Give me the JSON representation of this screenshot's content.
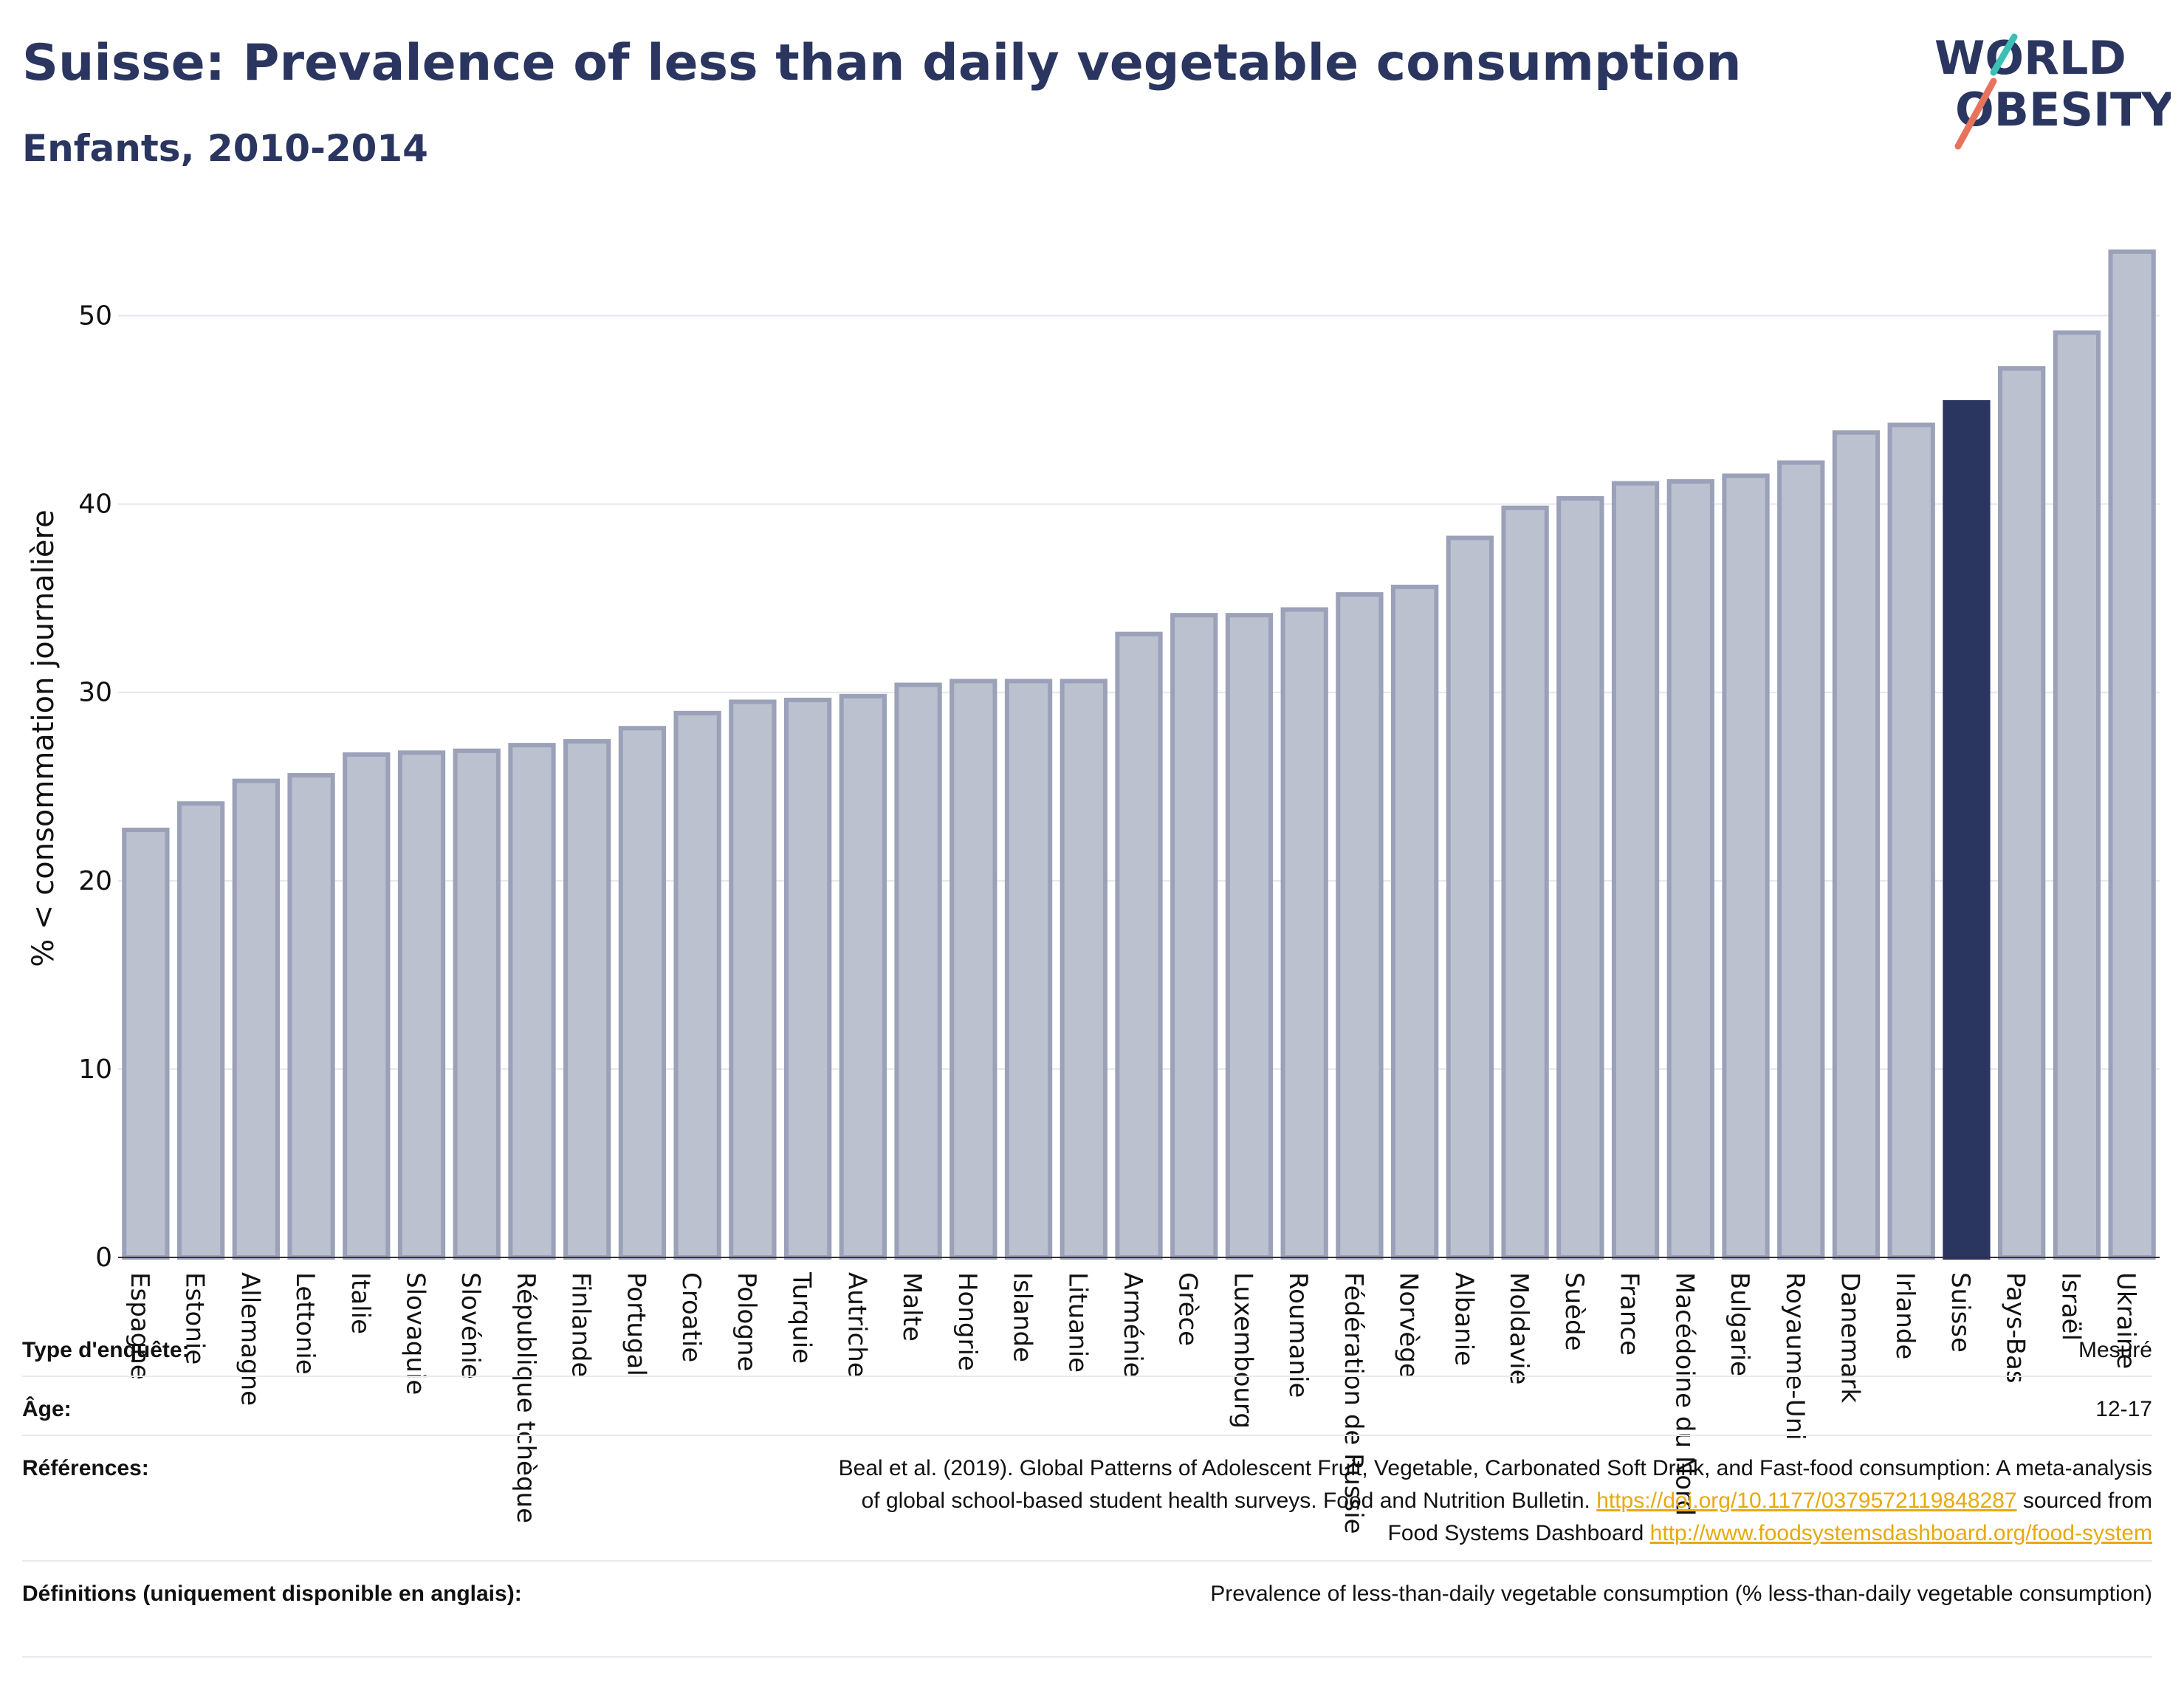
{
  "header": {
    "title": "Suisse: Prevalence of less than daily vegetable consumption",
    "subtitle": "Enfants, 2010-2014",
    "logo_line1": "WORLD",
    "logo_line2": "OBESITY"
  },
  "colors": {
    "bar_default": "#bcc1cf",
    "bar_default_border": "#9aa1b8",
    "bar_highlight": "#2a3560",
    "title": "#2a3560",
    "logo_teal": "#3cbfb4",
    "logo_coral": "#e8735d",
    "link": "#e7a90f"
  },
  "chart_data": {
    "type": "bar",
    "ylabel": "% < consommation journalière",
    "ylim": [
      0,
      55
    ],
    "yticks": [
      0,
      10,
      20,
      30,
      40,
      50
    ],
    "grid": true,
    "highlight": "Suisse",
    "categories": [
      "Espagne",
      "Estonie",
      "Allemagne",
      "Lettonie",
      "Italie",
      "Slovaquie",
      "Slovénie",
      "République tchèque",
      "Finlande",
      "Portugal",
      "Croatie",
      "Pologne",
      "Turquie",
      "Autriche",
      "Malte",
      "Hongrie",
      "Islande",
      "Lituanie",
      "Arménie",
      "Grèce",
      "Luxembourg",
      "Roumanie",
      "Fédération de Russie",
      "Norvège",
      "Albanie",
      "Moldavie",
      "Suède",
      "France",
      "Macédoine du Nord",
      "Bulgarie",
      "Royaume-Uni",
      "Danemark",
      "Irlande",
      "Suisse",
      "Pays-Bas",
      "Israël",
      "Ukraine"
    ],
    "values": [
      22.7,
      24.1,
      25.3,
      25.6,
      26.7,
      26.8,
      26.9,
      27.2,
      27.4,
      28.1,
      28.9,
      29.5,
      29.6,
      29.8,
      30.4,
      30.6,
      30.6,
      30.6,
      33.1,
      34.1,
      34.1,
      34.4,
      35.2,
      35.6,
      38.2,
      39.8,
      40.3,
      41.1,
      41.2,
      41.5,
      42.2,
      43.8,
      44.2,
      45.4,
      47.2,
      49.1,
      53.4
    ]
  },
  "info": {
    "rows": [
      {
        "label": "Type d'enquête:",
        "value": "Mesuré"
      },
      {
        "label": "Âge:",
        "value": "12-17"
      },
      {
        "label": "Références:",
        "value_lines": [
          {
            "text": "Beal et al. (2019). Global Patterns of Adolescent Fruit, Vegetable, Carbonated Soft Drink, and Fast-food consumption: A meta-analysis"
          },
          {
            "text": "of global school-based student health surveys. Food and Nutrition Bulletin. ",
            "link": "https://doi.org/10.1177/0379572119848287",
            "after": " sourced from"
          },
          {
            "text": "Food Systems Dashboard ",
            "link": "http://www.foodsystemsdashboard.org/food-system",
            "after": ""
          }
        ]
      },
      {
        "label": "Définitions (uniquement disponible en anglais):",
        "value": "Prevalence of less-than-daily vegetable consumption (% less-than-daily vegetable consumption)"
      }
    ]
  }
}
